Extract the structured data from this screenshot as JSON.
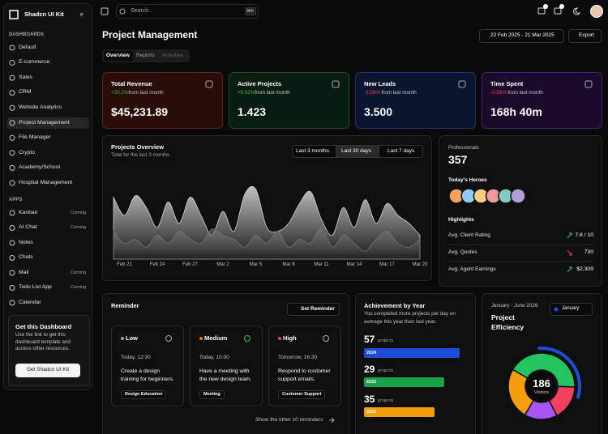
{
  "sidebar": {
    "brand": "Shadcn UI Kit",
    "sections": [
      {
        "title": "DASHBOARDS",
        "items": [
          {
            "label": "Default"
          },
          {
            "label": "E-commerce"
          },
          {
            "label": "Sales"
          },
          {
            "label": "CRM"
          },
          {
            "label": "Website Analytics"
          },
          {
            "label": "Project Management"
          },
          {
            "label": "File Manager"
          },
          {
            "label": "Crypto"
          },
          {
            "label": "Academy/School"
          },
          {
            "label": "Hospital Management"
          }
        ]
      },
      {
        "title": "APPS",
        "items": [
          {
            "label": "Kanban",
            "badge": "Coming"
          },
          {
            "label": "AI Chat",
            "badge": "Coming"
          },
          {
            "label": "Notes"
          },
          {
            "label": "Chats"
          },
          {
            "label": "Mail",
            "badge": "Coming"
          },
          {
            "label": "Todo List App",
            "badge": "Coming"
          },
          {
            "label": "Calendar"
          }
        ]
      }
    ],
    "promo": {
      "title": "Get this Dashboard",
      "text": "Use the link to get this dashboard template and access other resources.",
      "button": "Get Shadcn UI Kit"
    }
  },
  "topbar": {
    "search": "Search...",
    "shortcut": "⌘K"
  },
  "header": {
    "title": "Project Management",
    "date_range": "22 Feb 2025 - 21 Mar 2025",
    "export": "Export",
    "tabs": [
      "Overview",
      "Reports",
      "Activities"
    ]
  },
  "stats": [
    {
      "title": "Total Revenue",
      "change": "+20.1%",
      "note": "from last month",
      "value": "$45,231.89"
    },
    {
      "title": "Active Projects",
      "change": "+5.02%",
      "note": "from last month",
      "value": "1.423"
    },
    {
      "title": "New Leads",
      "change": "-3.58%",
      "note": "from last month",
      "value": "3.500"
    },
    {
      "title": "Time Spent",
      "change": "-3.58%",
      "note": "from last month",
      "value": "168h 40m"
    }
  ],
  "projects_overview": {
    "title": "Projects Overview",
    "subtitle": "Total for the last 3 months",
    "ranges": [
      "Last 3 months",
      "Last 30 days",
      "Last 7 days"
    ],
    "chart": {
      "type": "area",
      "categories": [
        null,
        "Feb 21",
        null,
        null,
        "Feb 24",
        null,
        null,
        "Feb 27",
        null,
        null,
        "Mar 2",
        null,
        null,
        "Mar 5",
        null,
        null,
        "Mar 8",
        null,
        null,
        "Mar 11",
        null,
        null,
        "Mar 14",
        null,
        null,
        "Mar 17",
        null,
        null,
        "Mar 20"
      ],
      "ylim": [
        0,
        100
      ],
      "series": [
        {
          "color": "#d4d4d4",
          "values": [
            78,
            55,
            80,
            65,
            40,
            72,
            45,
            78,
            55,
            30,
            60,
            35,
            82,
            88,
            40,
            35,
            45,
            70,
            85,
            50,
            30,
            65,
            40,
            75,
            45,
            70,
            55,
            45,
            30
          ]
        },
        {
          "color": "#737373",
          "values": [
            35,
            20,
            25,
            15,
            30,
            20,
            35,
            25,
            20,
            38,
            30,
            25,
            15,
            30,
            20,
            35,
            15,
            25,
            20,
            40,
            15,
            30,
            20,
            10,
            25,
            35,
            20,
            15,
            25
          ]
        }
      ]
    }
  },
  "team": {
    "label": "Professionals",
    "value": "357",
    "heroes": "Today's Heroes",
    "highlights": "Highlights",
    "rows": [
      {
        "label": "Avg. Client Rating",
        "value": "7.8 / 10"
      },
      {
        "label": "Avg. Quotes",
        "value": "730"
      },
      {
        "label": "Avg. Agent Earnings",
        "value": "$2,309"
      }
    ]
  },
  "reminder": {
    "title": "Reminder",
    "button": "Set Reminder",
    "items": [
      {
        "priority": "Low",
        "time": "Today, 12:30",
        "text": "Create a design training for beginners.",
        "tag": "Design Education"
      },
      {
        "priority": "Medium",
        "time": "Today, 10:00",
        "text": "Have a meeting with the new design team.",
        "tag": "Meeting"
      },
      {
        "priority": "High",
        "time": "Tomorrow, 16:30",
        "text": "Respond to customer support emails.",
        "tag": "Customer Support"
      }
    ],
    "footer": "Show the other 10 reminders"
  },
  "achievement": {
    "title": "Achievement by Year",
    "text": "You completed more projects per day on average this year than last year.",
    "items": [
      {
        "count": "57",
        "unit": "projects",
        "year": "2024"
      },
      {
        "count": "29",
        "unit": "projects",
        "year": "2023"
      },
      {
        "count": "35",
        "unit": "projects",
        "year": "2022"
      }
    ]
  },
  "efficiency": {
    "period": "January - June 2026",
    "title": "Project Efficiency",
    "month": "January",
    "center_value": "186",
    "center_label": "Visitors",
    "chart": {
      "type": "pie",
      "values": [
        42,
        17,
        16,
        25
      ],
      "colors": [
        "#22c55e",
        "#f43f5e",
        "#a855f7",
        "#f59e0b"
      ]
    }
  }
}
